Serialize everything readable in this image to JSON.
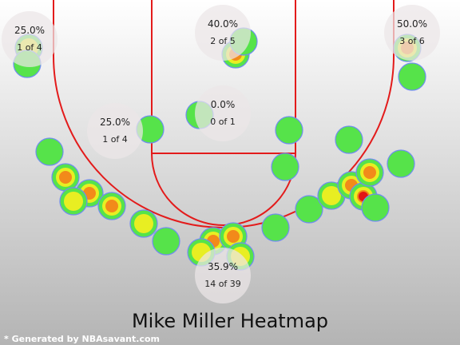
{
  "chart_data": {
    "type": "heatmap",
    "title": "Mike Miller Heatmap",
    "credit": "* Generated by NBAsavant.com",
    "colors": {
      "court_line": "#e31b1b",
      "low_density": "#56e34a",
      "mid_density": "#e8ee22",
      "high_density": "#f28a1a",
      "peak_density": "#e11515",
      "background_top": "#ffffff",
      "background_bottom": "#b4b4b4"
    },
    "zones": [
      {
        "zone": "left-corner-top",
        "pct": "25.0%",
        "made": "1 of 4"
      },
      {
        "zone": "top-paint",
        "pct": "40.0%",
        "made": "2 of 5"
      },
      {
        "zone": "right-corner-top",
        "pct": "50.0%",
        "made": "3 of 6"
      },
      {
        "zone": "left-midrange",
        "pct": "25.0%",
        "made": "1 of 4"
      },
      {
        "zone": "paint-center",
        "pct": "0.0%",
        "made": "0 of 1"
      },
      {
        "zone": "top-of-key-three",
        "pct": "35.9%",
        "made": "14 of 39"
      }
    ],
    "shot_clusters": [
      {
        "zone": "left-corner-top",
        "intensity": 0.4
      },
      {
        "zone": "left-corner-top",
        "intensity": 0.1
      },
      {
        "zone": "top-paint",
        "intensity": 0.85
      },
      {
        "zone": "top-paint",
        "intensity": 0.2
      },
      {
        "zone": "right-corner-top",
        "intensity": 0.8
      },
      {
        "zone": "right-corner-top",
        "intensity": 0.1
      },
      {
        "zone": "left-midrange",
        "intensity": 0.1
      },
      {
        "zone": "paint-center",
        "intensity": 0.1
      },
      {
        "zone": "right-midrange",
        "intensity": 0.1
      },
      {
        "zone": "right-midrange",
        "intensity": 0.1
      },
      {
        "zone": "right-midrange",
        "intensity": 0.1
      },
      {
        "zone": "left-wing-three",
        "intensity": 0.2
      },
      {
        "zone": "left-wing-three",
        "intensity": 0.7
      },
      {
        "zone": "left-wing-three",
        "intensity": 0.85
      },
      {
        "zone": "left-wing-three",
        "intensity": 0.5
      },
      {
        "zone": "left-wing-three",
        "intensity": 0.7
      },
      {
        "zone": "left-wing-three",
        "intensity": 0.3
      },
      {
        "zone": "left-wing-three",
        "intensity": 0.1
      },
      {
        "zone": "top-of-key-three",
        "intensity": 0.75
      },
      {
        "zone": "top-of-key-three",
        "intensity": 0.6
      },
      {
        "zone": "top-of-key-three",
        "intensity": 0.3
      },
      {
        "zone": "top-of-key-three",
        "intensity": 0.3
      },
      {
        "zone": "right-wing-three",
        "intensity": 0.2
      },
      {
        "zone": "right-wing-three",
        "intensity": 0.1
      },
      {
        "zone": "right-wing-three",
        "intensity": 0.5
      },
      {
        "zone": "right-wing-three",
        "intensity": 0.8
      },
      {
        "zone": "right-wing-three",
        "intensity": 1.0
      },
      {
        "zone": "right-wing-three",
        "intensity": 0.6
      },
      {
        "zone": "right-wing-three",
        "intensity": 0.1
      },
      {
        "zone": "right-wing-three",
        "intensity": 0.1
      }
    ]
  }
}
